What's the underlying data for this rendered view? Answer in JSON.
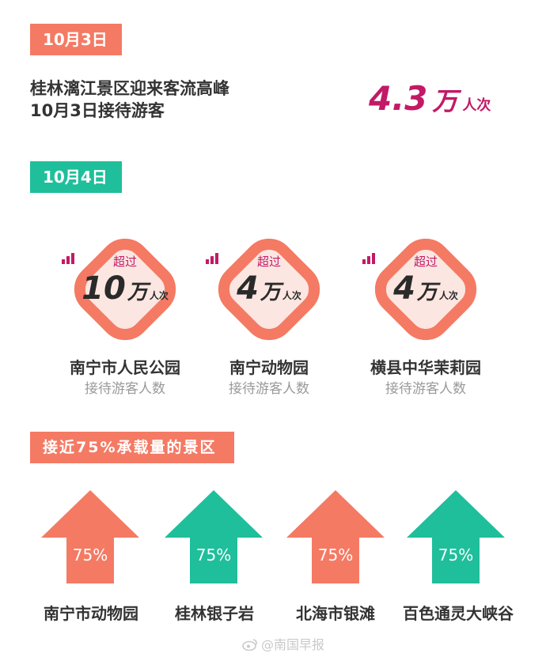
{
  "colors": {
    "coral": "#f47a64",
    "teal": "#1fbf9b",
    "magenta": "#c21a66",
    "diamond_fill": "#fbe6e1"
  },
  "section1": {
    "tag": "10月3日",
    "line1": "桂林漓江景区迎来客流高峰",
    "line2": "10月3日接待游客",
    "number": "4.3",
    "unit": "万",
    "per": "人次"
  },
  "section2": {
    "tag": "10月4日",
    "parks": [
      {
        "over": "超过",
        "number": "10",
        "unit": "万",
        "per": "人次",
        "name": "南宁市人民公园",
        "sub": "接待游客人数"
      },
      {
        "over": "超过",
        "number": "4",
        "unit": "万",
        "per": "人次",
        "name": "南宁动物园",
        "sub": "接待游客人数"
      },
      {
        "over": "超过",
        "number": "4",
        "unit": "万",
        "per": "人次",
        "name": "横县中华茉莉园",
        "sub": "接待游客人数"
      }
    ]
  },
  "section3": {
    "tag": "接近75%承载量的景区",
    "sites": [
      {
        "percent": "75%",
        "name": "南宁市动物园",
        "color": "coral"
      },
      {
        "percent": "75%",
        "name": "桂林银子岩",
        "color": "teal"
      },
      {
        "percent": "75%",
        "name": "北海市银滩",
        "color": "coral"
      },
      {
        "percent": "75%",
        "name": "百色通灵大峡谷",
        "color": "teal"
      }
    ]
  },
  "watermark": {
    "icon": "weibo-icon",
    "text": "@南国早报"
  }
}
